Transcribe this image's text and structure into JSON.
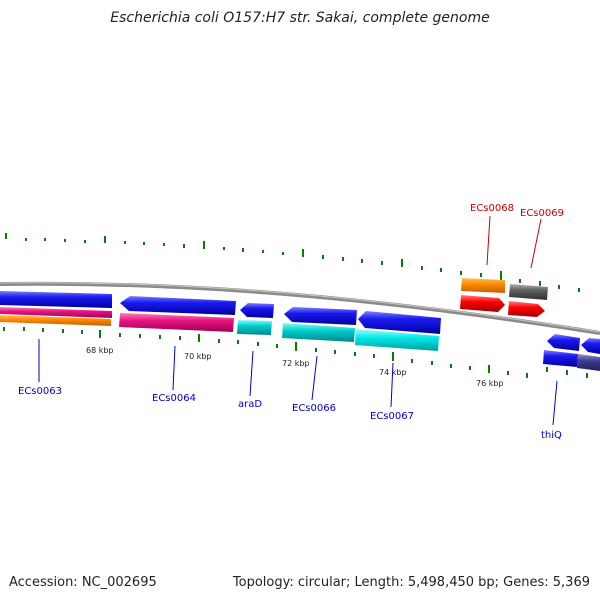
{
  "title": "Escherichia coli O157:H7 str. Sakai, complete genome",
  "footer": {
    "accession": "Accession: NC_002695",
    "topology": "Topology: circular; Length: 5,498,450 bp; Genes: 5,369"
  },
  "scale_labels": [
    "68 kbp",
    "70 kbp",
    "72 kbp",
    "74 kbp",
    "76 kbp"
  ],
  "colors": {
    "backbone": "#8a8a8a",
    "blue_gene": "#0a0adf",
    "magenta_feature": "#e6147f",
    "orange_feature": "#ff8c00",
    "cyan_feature": "#00cccc",
    "red_gene": "#ff0000",
    "gray_gene": "#5a5a5a",
    "tick": "#0a7a0a",
    "blue_label": "#0000cc",
    "red_label": "#cc0000"
  },
  "gene_labels_blue": [
    "ECs0063",
    "ECs0064",
    "araD",
    "ECs0066",
    "ECs0067",
    "thiQ"
  ],
  "gene_labels_red": [
    "ECs0068",
    "ECs0069"
  ]
}
